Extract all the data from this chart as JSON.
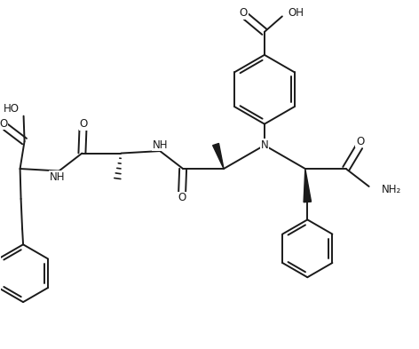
{
  "background": "#ffffff",
  "line_color": "#1a1a1a",
  "line_width": 1.4,
  "font_size": 8.5,
  "fig_width": 4.72,
  "fig_height": 3.93,
  "dpi": 100,
  "xlim": [
    0,
    9.44
  ],
  "ylim": [
    0,
    7.86
  ]
}
